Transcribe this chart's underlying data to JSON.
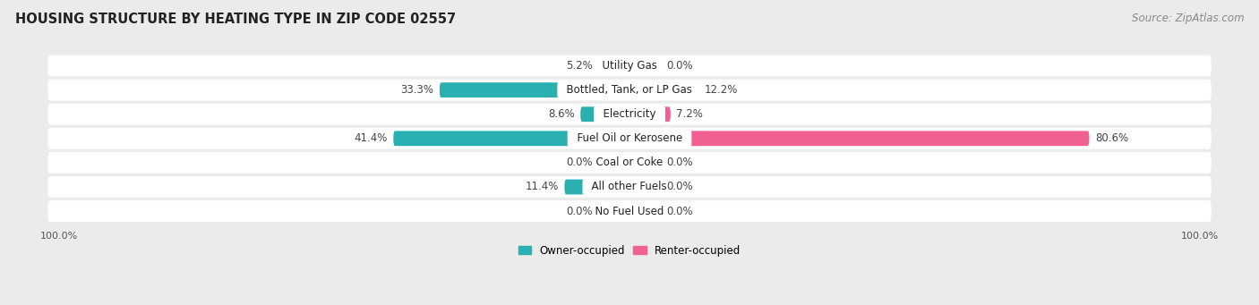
{
  "title": "HOUSING STRUCTURE BY HEATING TYPE IN ZIP CODE 02557",
  "source": "Source: ZipAtlas.com",
  "categories": [
    "Utility Gas",
    "Bottled, Tank, or LP Gas",
    "Electricity",
    "Fuel Oil or Kerosene",
    "Coal or Coke",
    "All other Fuels",
    "No Fuel Used"
  ],
  "owner_values": [
    5.2,
    33.3,
    8.6,
    41.4,
    0.0,
    11.4,
    0.0
  ],
  "renter_values": [
    0.0,
    12.2,
    7.2,
    80.6,
    0.0,
    0.0,
    0.0
  ],
  "owner_color_dark": "#2ab0b0",
  "owner_color_light": "#7fd4d4",
  "renter_color_dark": "#f06090",
  "renter_color_light": "#f9b8cc",
  "owner_label": "Owner-occupied",
  "renter_label": "Renter-occupied",
  "background_color": "#ebebeb",
  "row_bg_color": "#ffffff",
  "xlim": 100,
  "min_bar_width": 5.5,
  "title_fontsize": 10.5,
  "source_fontsize": 8.5,
  "label_fontsize": 8.5,
  "cat_fontsize": 8.5,
  "axis_label_fontsize": 8,
  "bar_height": 0.62
}
